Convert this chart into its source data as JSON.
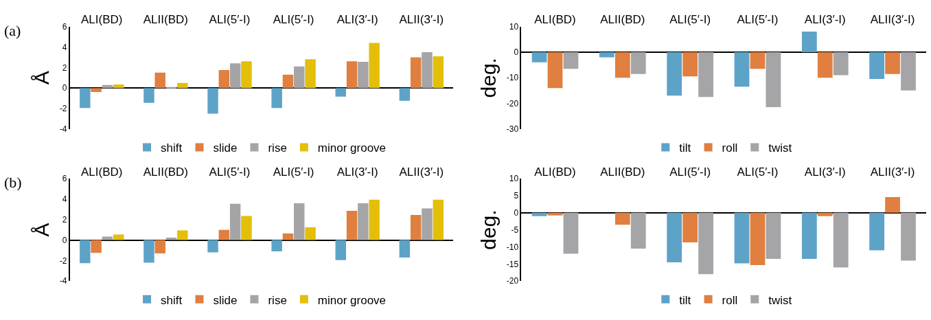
{
  "chart_data": [
    {
      "type": "bar",
      "annotations": [
        "(a)"
      ],
      "ylabel": "Å",
      "categories": [
        "ALI(BD)",
        "ALII(BD)",
        "ALI(5′-I)",
        "ALI(5′-I)",
        "ALI(3′-I)",
        "ALII(3′-I)"
      ],
      "ylim": [
        -4,
        6
      ],
      "yticks": [
        -4,
        -2,
        0,
        2,
        4,
        6
      ],
      "legend": "bottom",
      "series": [
        {
          "name": "shift",
          "color": "#5da3c7",
          "values": [
            -1.95,
            -1.45,
            -2.5,
            -1.95,
            -0.85,
            -1.25
          ]
        },
        {
          "name": "slide",
          "color": "#e07f3f",
          "values": [
            -0.4,
            1.5,
            1.75,
            1.3,
            2.6,
            3.0
          ]
        },
        {
          "name": "rise",
          "color": "#a5a5a8",
          "values": [
            0.3,
            0.1,
            2.4,
            2.1,
            2.55,
            3.5
          ]
        },
        {
          "name": "minor groove",
          "color": "#e3bf0a",
          "values": [
            0.35,
            0.5,
            2.6,
            2.8,
            4.4,
            3.1
          ]
        }
      ]
    },
    {
      "type": "bar",
      "ylabel": "deg.",
      "categories": [
        "ALI(BD)",
        "ALII(BD)",
        "ALI(5′-I)",
        "ALI(5′-I)",
        "ALI(3′-I)",
        "ALII(3′-I)"
      ],
      "ylim": [
        -30,
        10
      ],
      "yticks": [
        -30,
        -20,
        -10,
        0,
        10
      ],
      "legend": "bottom",
      "series": [
        {
          "name": "tilt",
          "color": "#5da3c7",
          "values": [
            -4,
            -2,
            -17,
            -13.5,
            8,
            -10.5
          ]
        },
        {
          "name": "roll",
          "color": "#e07f3f",
          "values": [
            -14,
            -10,
            -9.5,
            -6.5,
            -10,
            -8.5
          ]
        },
        {
          "name": "twist",
          "color": "#a5a5a8",
          "values": [
            -6.5,
            -8.5,
            -17.5,
            -21.5,
            -9,
            -15
          ]
        }
      ]
    },
    {
      "type": "bar",
      "annotations": [
        "(b)"
      ],
      "ylabel": "Å",
      "categories": [
        "ALI(BD)",
        "ALII(BD)",
        "ALI(5′-I)",
        "ALI(5′-I)",
        "ALI(3′-I)",
        "ALII(3′-I)"
      ],
      "ylim": [
        -4,
        6
      ],
      "yticks": [
        -4,
        -2,
        0,
        2,
        4,
        6
      ],
      "legend": "bottom",
      "series": [
        {
          "name": "shift",
          "color": "#5da3c7",
          "values": [
            -2.25,
            -2.2,
            -1.2,
            -1.1,
            -1.95,
            -1.7
          ]
        },
        {
          "name": "slide",
          "color": "#e07f3f",
          "values": [
            -1.25,
            -1.3,
            1.0,
            0.65,
            2.85,
            2.45
          ]
        },
        {
          "name": "rise",
          "color": "#a5a5a8",
          "values": [
            0.35,
            0.25,
            3.55,
            3.6,
            3.6,
            3.1
          ]
        },
        {
          "name": "minor groove",
          "color": "#e3bf0a",
          "values": [
            0.55,
            0.95,
            2.35,
            1.25,
            3.95,
            3.95
          ]
        }
      ]
    },
    {
      "type": "bar",
      "ylabel": "deg.",
      "categories": [
        "ALI(BD)",
        "ALII(BD)",
        "ALI(5′-I)",
        "ALI(5′-I)",
        "ALI(3′-I)",
        "ALII(3′-I)"
      ],
      "ylim": [
        -20,
        10
      ],
      "yticks": [
        -20,
        -15,
        -10,
        -5,
        0,
        5,
        10
      ],
      "legend": "bottom",
      "series": [
        {
          "name": "tilt",
          "color": "#5da3c7",
          "values": [
            -1,
            0,
            -14.5,
            -14.8,
            -13.5,
            -11
          ]
        },
        {
          "name": "roll",
          "color": "#e07f3f",
          "values": [
            -0.8,
            -3.5,
            -8.7,
            -15.3,
            -1,
            4.6
          ]
        },
        {
          "name": "twist",
          "color": "#a5a5a8",
          "values": [
            -12,
            -10.5,
            -18,
            -13.5,
            -16,
            -14
          ]
        }
      ]
    }
  ]
}
